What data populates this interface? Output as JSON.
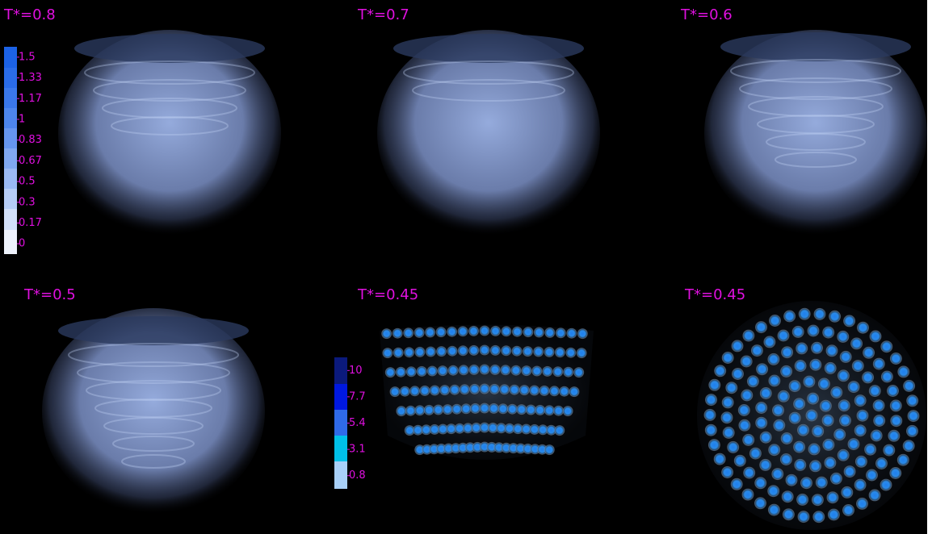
{
  "panels": [
    {
      "label": "T*=0.8"
    },
    {
      "label": "T*=0.7"
    },
    {
      "label": "T*=0.6"
    },
    {
      "label": "T*=0.5"
    },
    {
      "label": "T*=0.45"
    },
    {
      "label": "T*=0.45"
    }
  ],
  "colorbars": [
    {
      "ticks": [
        "1.5",
        "1.33",
        "1.17",
        "1",
        "0.83",
        "0.67",
        "0.5",
        "0.3",
        "0.17",
        "0"
      ]
    },
    {
      "ticks": [
        "10",
        "7.7",
        "5.4",
        "3.1",
        "0.8"
      ]
    }
  ]
}
